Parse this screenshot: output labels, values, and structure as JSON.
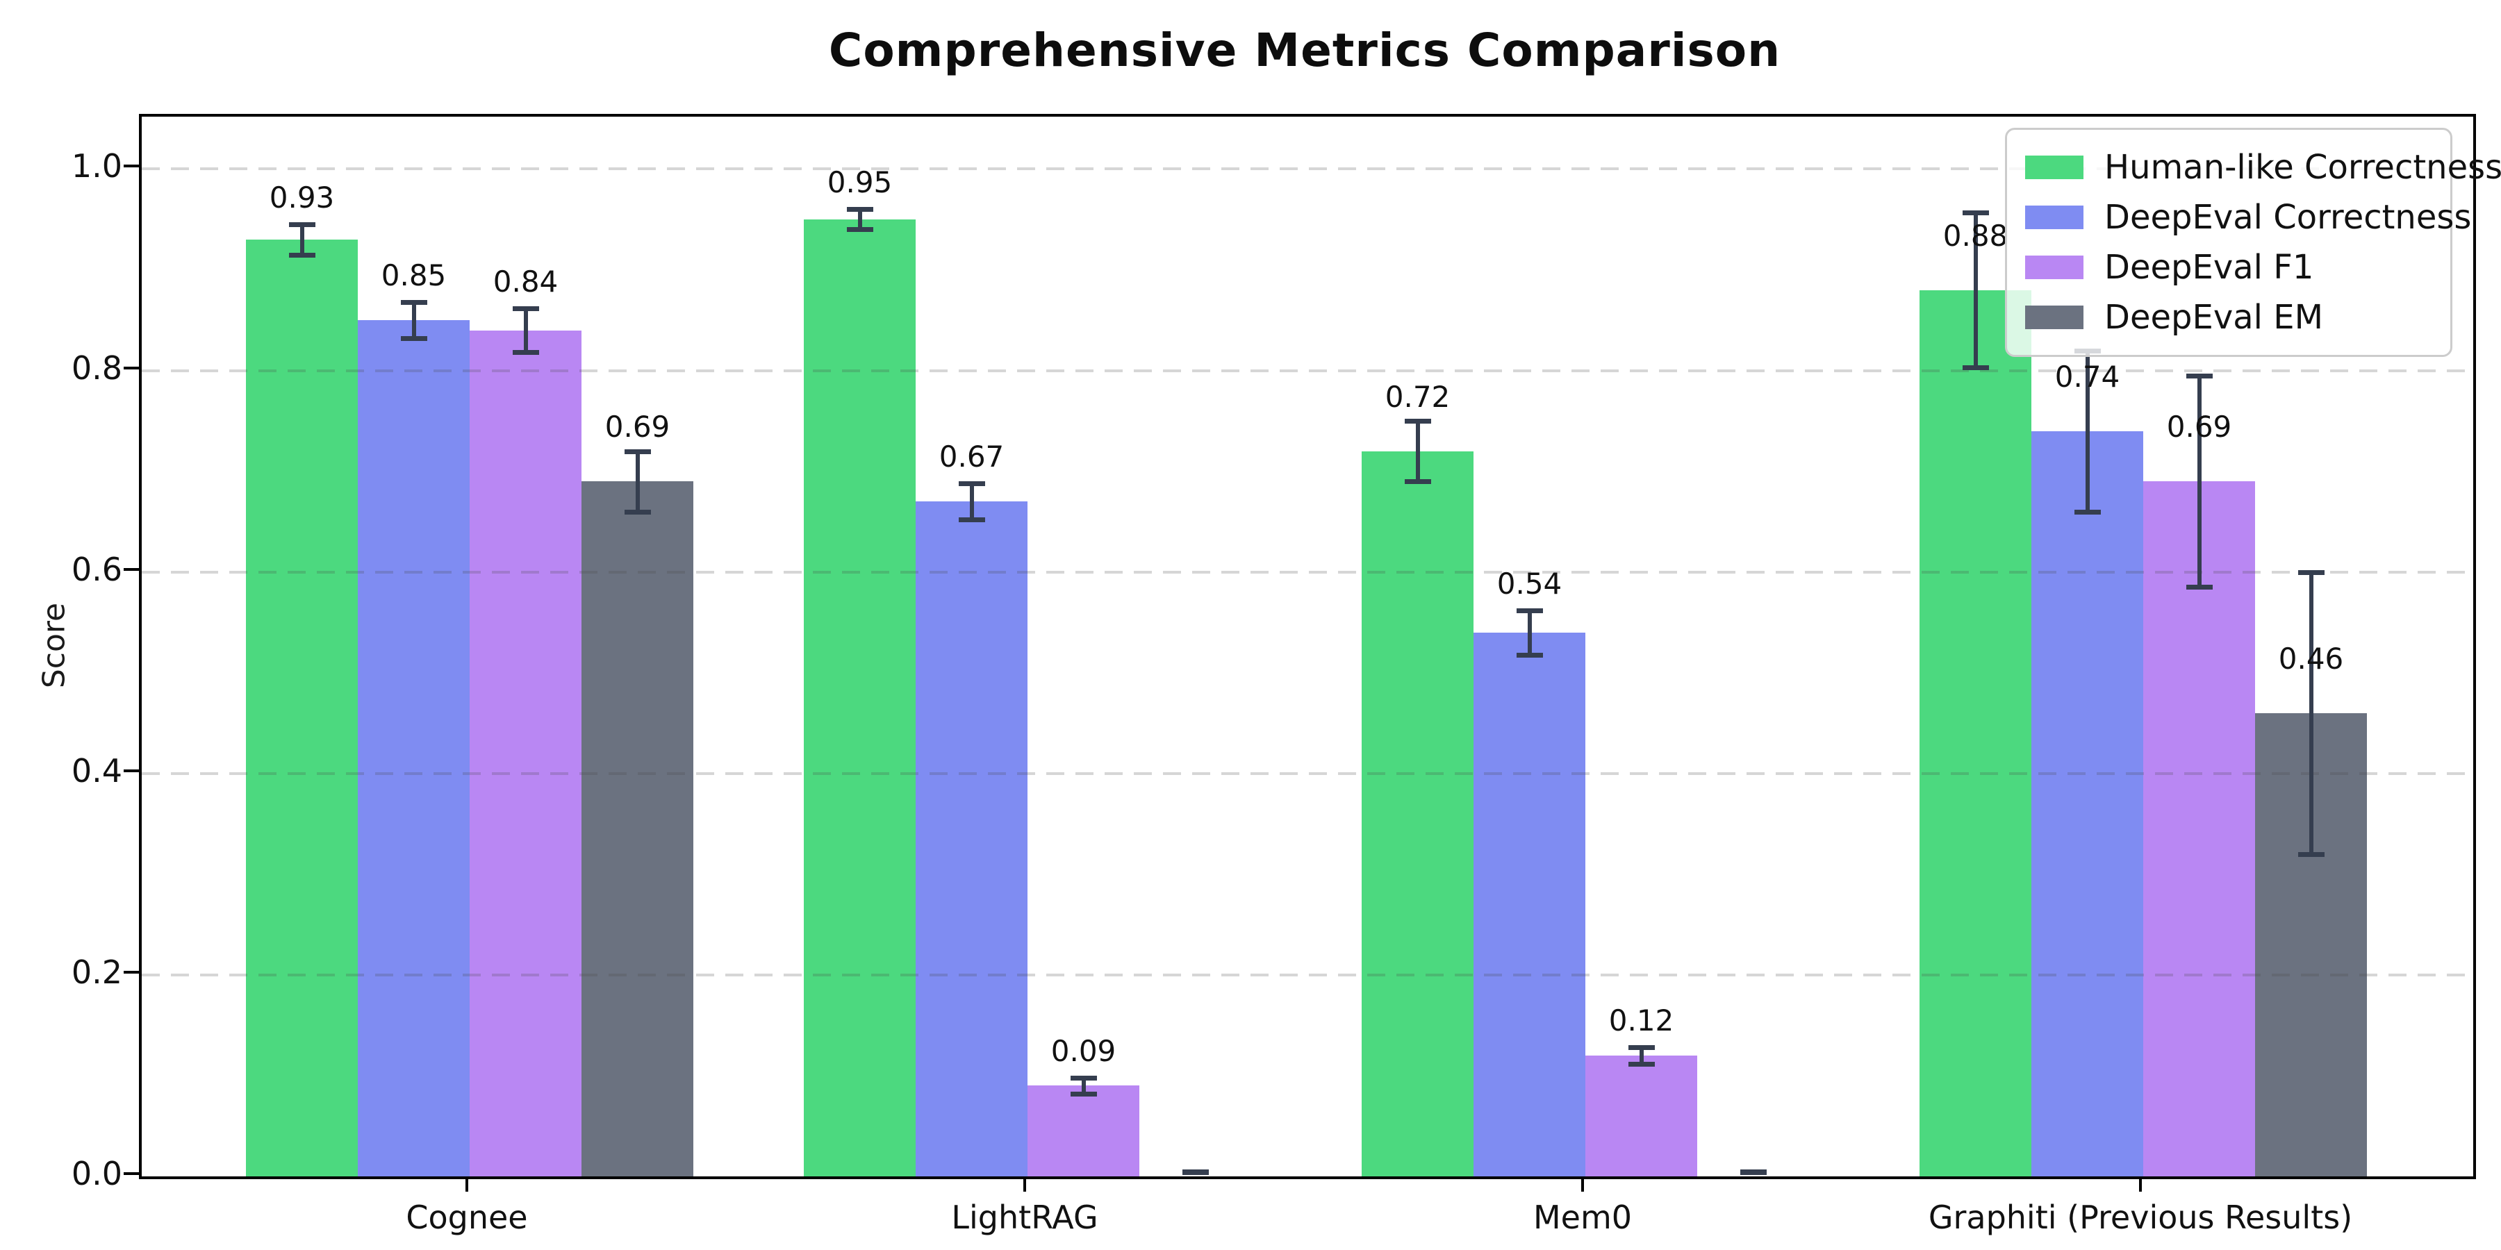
{
  "chart_data": {
    "type": "bar",
    "title": "Comprehensive Metrics Comparison",
    "ylabel": "Score",
    "xlabel": "",
    "categories": [
      "Cognee",
      "LightRAG",
      "Mem0",
      "Graphiti (Previous Results)"
    ],
    "series": [
      {
        "name": "Human-like Correctness",
        "color": "#4CD97F",
        "values": [
          0.93,
          0.95,
          0.72,
          0.88
        ],
        "errors": [
          0.015,
          0.01,
          0.03,
          0.077
        ],
        "labels": [
          "0.93",
          "0.95",
          "0.72",
          "0.88"
        ]
      },
      {
        "name": "DeepEval Correctness",
        "color": "#7F8CF2",
        "values": [
          0.85,
          0.67,
          0.54,
          0.74
        ],
        "errors": [
          0.018,
          0.018,
          0.022,
          0.08
        ],
        "labels": [
          "0.85",
          "0.67",
          "0.54",
          "0.74"
        ]
      },
      {
        "name": "DeepEval F1",
        "color": "#B987F3",
        "values": [
          0.84,
          0.09,
          0.12,
          0.69
        ],
        "errors": [
          0.022,
          0.008,
          0.008,
          0.105
        ],
        "labels": [
          "0.84",
          "0.09",
          "0.12",
          "0.69"
        ]
      },
      {
        "name": "DeepEval EM",
        "color": "#6B7280",
        "values": [
          0.69,
          0.0,
          0.0,
          0.46
        ],
        "errors": [
          0.03,
          0.004,
          0.004,
          0.14
        ],
        "labels": [
          "0.69",
          "",
          "",
          "0.46"
        ]
      }
    ],
    "ytick_labels": [
      "0.0",
      "0.2",
      "0.4",
      "0.6",
      "0.8",
      "1.0"
    ],
    "yticks": [
      0.0,
      0.2,
      0.4,
      0.6,
      0.8,
      1.0
    ],
    "ylim": [
      0,
      1.05
    ],
    "grid": "dashed-horizontal",
    "legend_position": "upper right",
    "errorbar_color": "#353E4F",
    "gridline_color": "#D9D9D9"
  }
}
